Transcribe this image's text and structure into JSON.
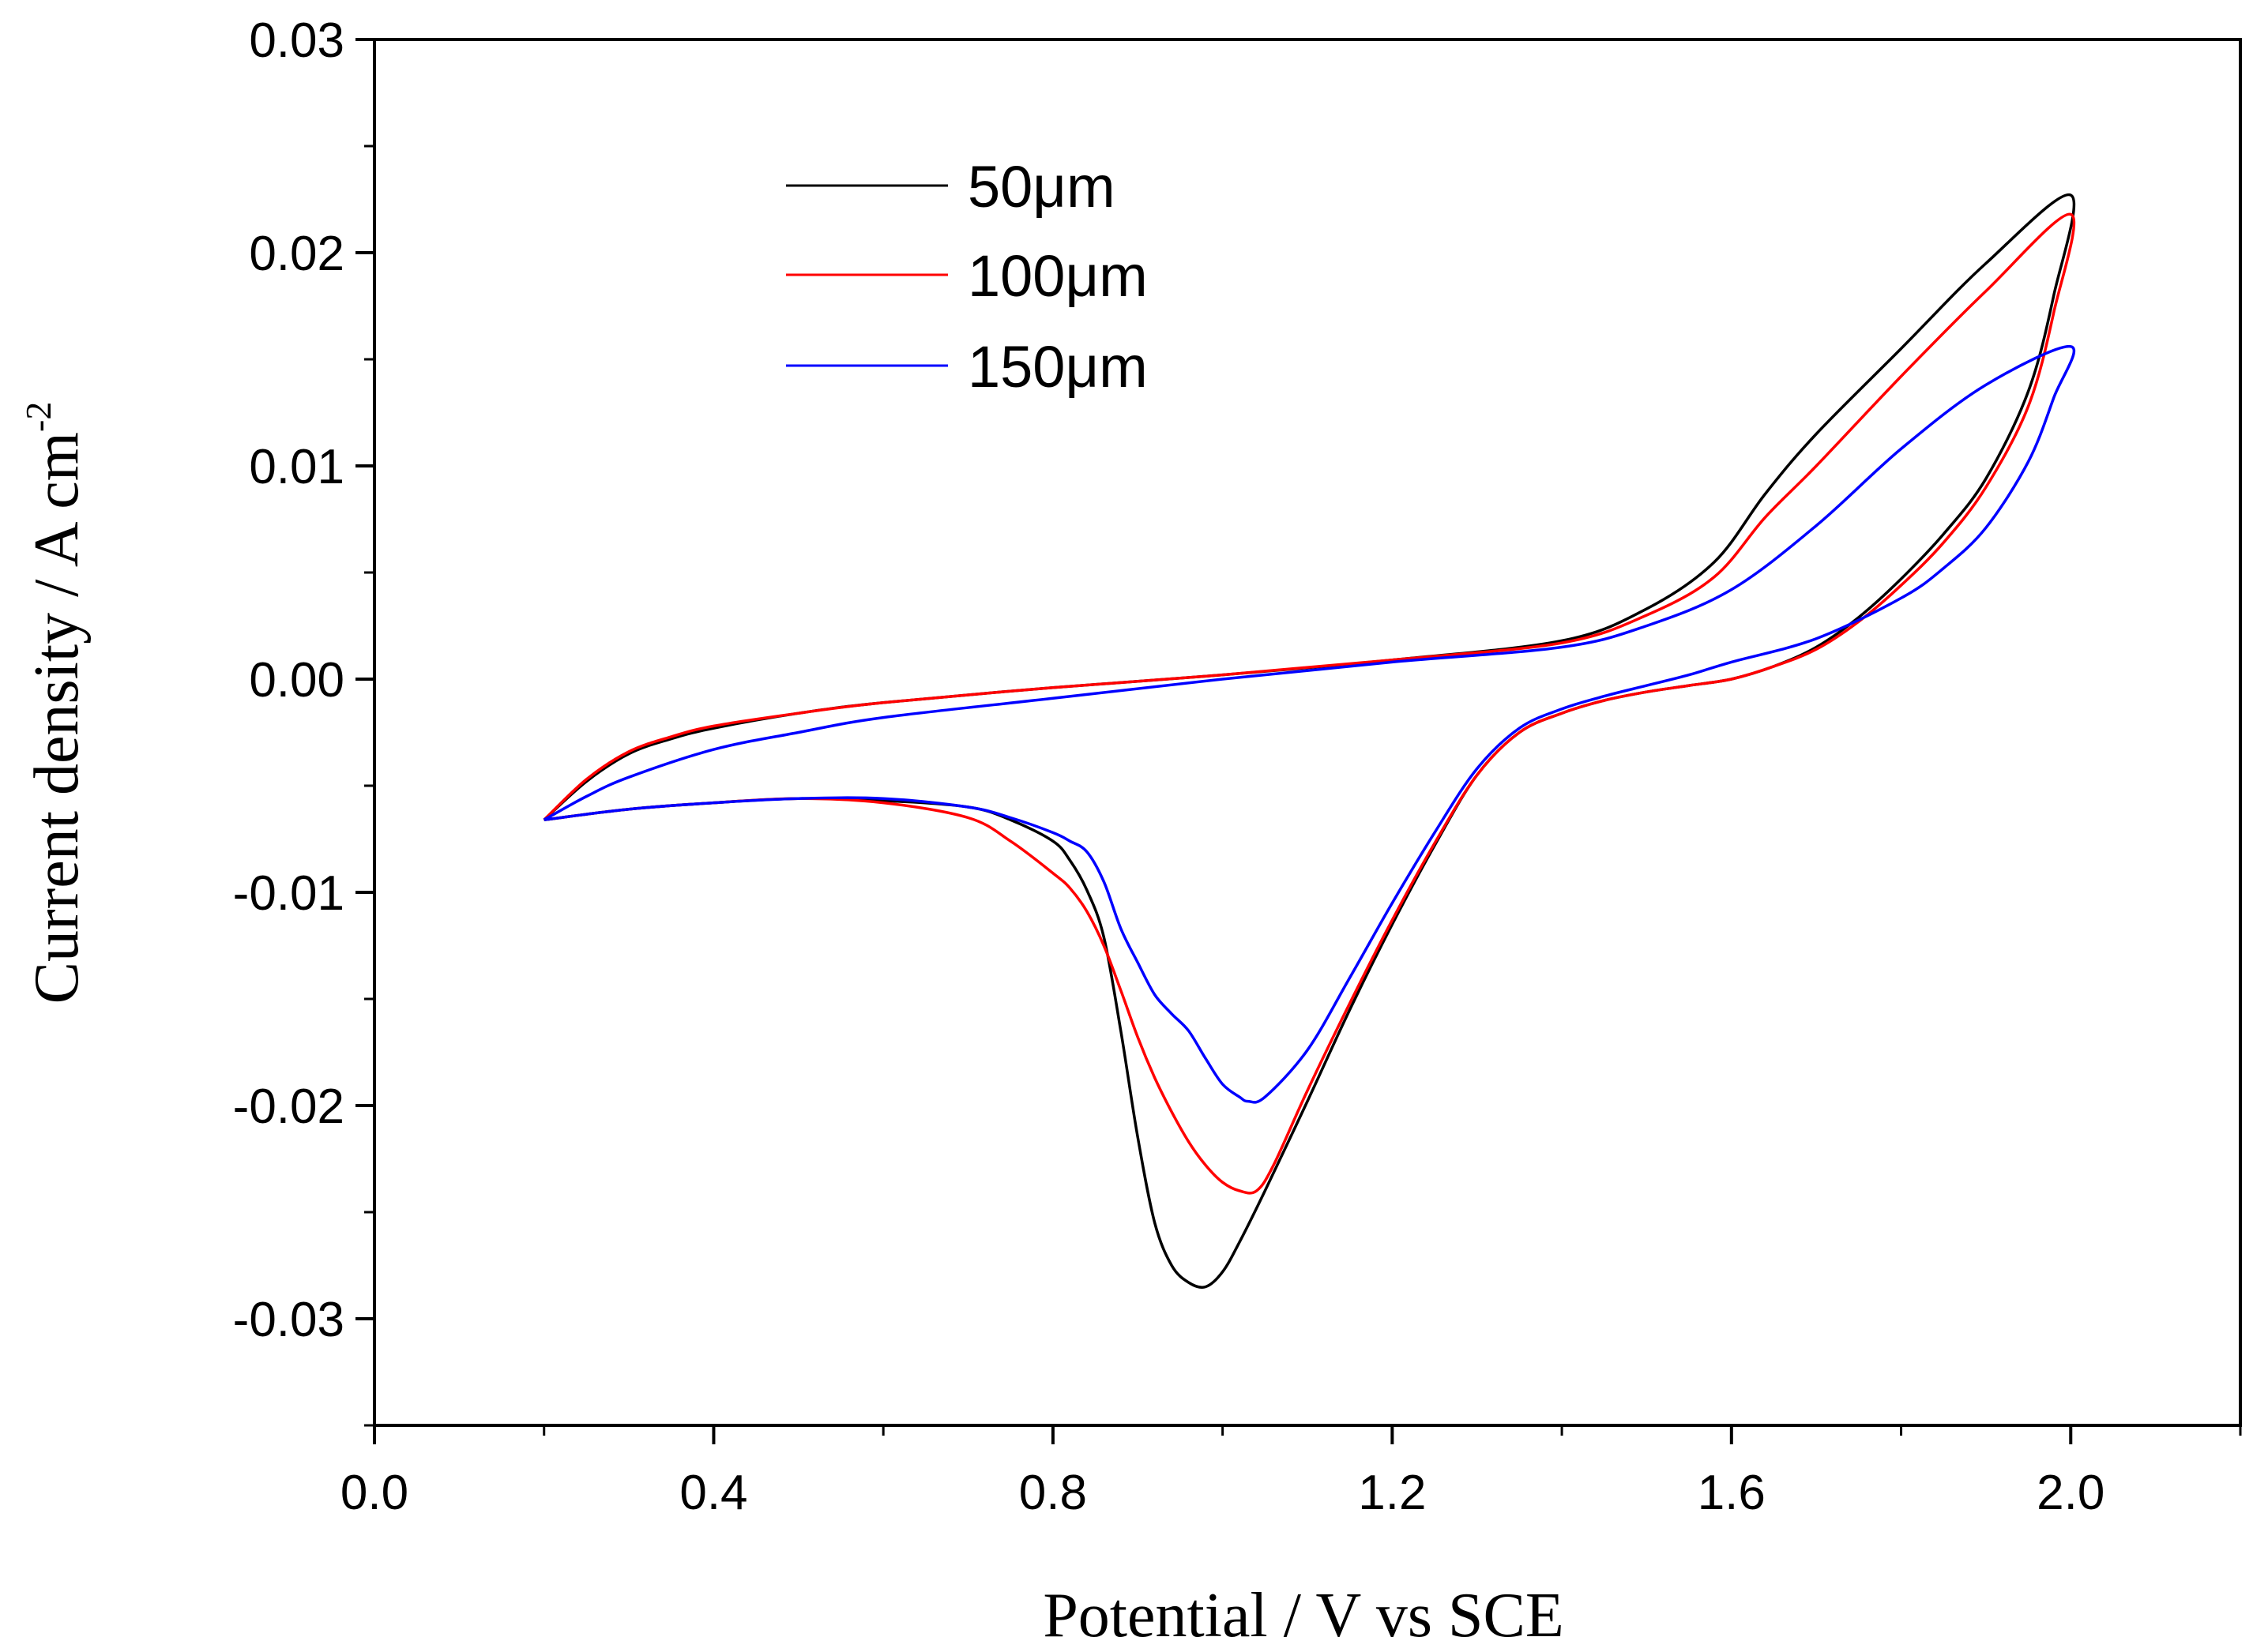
{
  "chart_data": {
    "type": "line",
    "title": "",
    "xlabel": "Potential / V vs SCE",
    "ylabel_main": "Current density / A cm",
    "ylabel_sup": "-2",
    "xlim": [
      0.0,
      2.2
    ],
    "ylim": [
      -0.035,
      0.03
    ],
    "x_ticks": [
      0.0,
      0.4,
      0.8,
      1.2,
      1.6,
      2.0
    ],
    "x_tick_labels": [
      "0.0",
      "0.4",
      "0.8",
      "1.2",
      "1.6",
      "2.0"
    ],
    "y_ticks": [
      0.03,
      0.02,
      0.01,
      0.0,
      -0.01,
      -0.02,
      -0.03
    ],
    "y_tick_labels": [
      "0.03",
      "0.02",
      "0.01",
      "0.00",
      "-0.01",
      "-0.02",
      "-0.03"
    ],
    "grid": false,
    "legend_position": "top-center",
    "series": [
      {
        "name": "50μm",
        "color": "#000000",
        "x": [
          0.2,
          0.25,
          0.3,
          0.35,
          0.4,
          0.5,
          0.6,
          0.8,
          1.0,
          1.2,
          1.4,
          1.5,
          1.58,
          1.64,
          1.7,
          1.8,
          1.9,
          2.0,
          1.98,
          1.95,
          1.9,
          1.85,
          1.8,
          1.75,
          1.7,
          1.65,
          1.6,
          1.55,
          1.5,
          1.45,
          1.4,
          1.35,
          1.3,
          1.25,
          1.2,
          1.15,
          1.1,
          1.05,
          1.02,
          1.0,
          0.98,
          0.96,
          0.94,
          0.92,
          0.9,
          0.88,
          0.86,
          0.84,
          0.82,
          0.8,
          0.75,
          0.7,
          0.6,
          0.5,
          0.4,
          0.3,
          0.2
        ],
        "values": [
          -0.0066,
          -0.0048,
          -0.0035,
          -0.0028,
          -0.0023,
          -0.0016,
          -0.0011,
          -0.0004,
          0.0002,
          0.0009,
          0.0018,
          0.0033,
          0.0055,
          0.0087,
          0.0115,
          0.0155,
          0.0195,
          0.0227,
          0.018,
          0.0135,
          0.0094,
          0.0068,
          0.0047,
          0.0029,
          0.0015,
          0.0006,
          0.0,
          -0.0003,
          -0.0006,
          -0.001,
          -0.0016,
          -0.0025,
          -0.0045,
          -0.0078,
          -0.0115,
          -0.0155,
          -0.0198,
          -0.024,
          -0.0264,
          -0.0278,
          -0.0285,
          -0.0283,
          -0.0275,
          -0.0255,
          -0.0215,
          -0.0165,
          -0.0121,
          -0.0099,
          -0.0085,
          -0.0076,
          -0.0066,
          -0.006,
          -0.0057,
          -0.0056,
          -0.0058,
          -0.0061,
          -0.0066
        ]
      },
      {
        "name": "100μm",
        "color": "#ff0000",
        "x": [
          0.2,
          0.25,
          0.3,
          0.35,
          0.4,
          0.5,
          0.6,
          0.8,
          1.0,
          1.2,
          1.4,
          1.5,
          1.58,
          1.64,
          1.7,
          1.8,
          1.9,
          2.0,
          1.98,
          1.95,
          1.9,
          1.85,
          1.8,
          1.75,
          1.7,
          1.65,
          1.6,
          1.55,
          1.5,
          1.45,
          1.4,
          1.35,
          1.3,
          1.25,
          1.2,
          1.15,
          1.1,
          1.06,
          1.04,
          1.02,
          1.0,
          0.98,
          0.96,
          0.94,
          0.92,
          0.9,
          0.88,
          0.86,
          0.84,
          0.82,
          0.8,
          0.75,
          0.7,
          0.6,
          0.5,
          0.4,
          0.3,
          0.2
        ],
        "values": [
          -0.0066,
          -0.0047,
          -0.0034,
          -0.0027,
          -0.0022,
          -0.0016,
          -0.0011,
          -0.0004,
          0.0002,
          0.0009,
          0.0017,
          0.003,
          0.0048,
          0.0076,
          0.01,
          0.0142,
          0.0182,
          0.0218,
          0.0172,
          0.0128,
          0.009,
          0.0064,
          0.0044,
          0.0027,
          0.0014,
          0.0006,
          0.0,
          -0.0003,
          -0.0006,
          -0.001,
          -0.0016,
          -0.0025,
          -0.0045,
          -0.0077,
          -0.0113,
          -0.0152,
          -0.0193,
          -0.0228,
          -0.024,
          -0.024,
          -0.0236,
          -0.0228,
          -0.0217,
          -0.0203,
          -0.0187,
          -0.0168,
          -0.0146,
          -0.0125,
          -0.0109,
          -0.0098,
          -0.0091,
          -0.0076,
          -0.0065,
          -0.0058,
          -0.0056,
          -0.0058,
          -0.0061,
          -0.0066
        ]
      },
      {
        "name": "150μm",
        "color": "#0000ff",
        "x": [
          0.2,
          0.25,
          0.3,
          0.4,
          0.5,
          0.6,
          0.8,
          1.0,
          1.2,
          1.4,
          1.5,
          1.6,
          1.7,
          1.8,
          1.9,
          2.0,
          1.98,
          1.95,
          1.9,
          1.85,
          1.8,
          1.7,
          1.6,
          1.55,
          1.5,
          1.45,
          1.4,
          1.35,
          1.3,
          1.25,
          1.2,
          1.15,
          1.1,
          1.05,
          1.03,
          1.02,
          1.0,
          0.98,
          0.96,
          0.94,
          0.92,
          0.9,
          0.88,
          0.86,
          0.84,
          0.82,
          0.8,
          0.75,
          0.7,
          0.6,
          0.5,
          0.4,
          0.3,
          0.2
        ],
        "values": [
          -0.0066,
          -0.0055,
          -0.0046,
          -0.0033,
          -0.0025,
          -0.0018,
          -0.0009,
          0.0,
          0.0008,
          0.0015,
          0.0025,
          0.0042,
          0.0072,
          0.0108,
          0.0138,
          0.0156,
          0.0132,
          0.0102,
          0.0071,
          0.0052,
          0.0038,
          0.0019,
          0.0008,
          0.0002,
          -0.0003,
          -0.0008,
          -0.0014,
          -0.0023,
          -0.0042,
          -0.0072,
          -0.0105,
          -0.014,
          -0.0174,
          -0.0196,
          -0.0198,
          -0.0196,
          -0.019,
          -0.0178,
          -0.0165,
          -0.0157,
          -0.0148,
          -0.0133,
          -0.0117,
          -0.0095,
          -0.0081,
          -0.0076,
          -0.0072,
          -0.0065,
          -0.006,
          -0.0056,
          -0.0056,
          -0.0058,
          -0.0061,
          -0.0066
        ]
      }
    ]
  }
}
